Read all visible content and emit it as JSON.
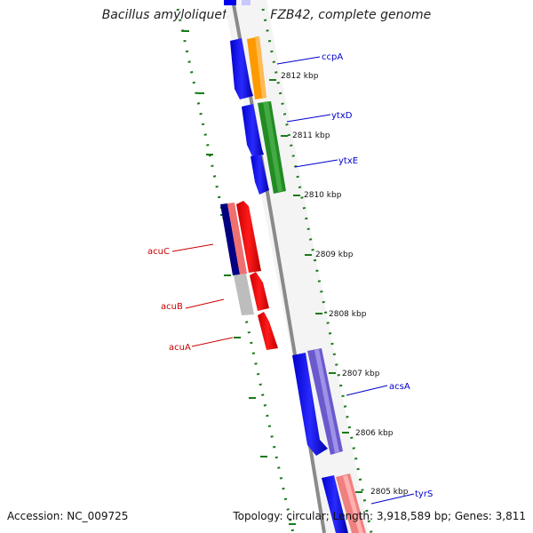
{
  "title": "Bacillus amyloliquefaciens FZB42, complete genome",
  "footer": {
    "accession": "Accession: NC_009725",
    "topology": "Topology: circular; Length: 3,918,589 bp; Genes: 3,811"
  },
  "scale_labels": [
    "2812 kbp",
    "2811 kbp",
    "2810 kbp",
    "2809 kbp",
    "2808 kbp",
    "2807 kbp",
    "2806 kbp",
    "2805 kbp"
  ],
  "genes": [
    {
      "name": "ccpA",
      "color": "#0000cc"
    },
    {
      "name": "ytxD",
      "color": "#0000cc"
    },
    {
      "name": "ytxE",
      "color": "#0000cc"
    },
    {
      "name": "acuC",
      "color": "#cc0000"
    },
    {
      "name": "acuB",
      "color": "#cc0000"
    },
    {
      "name": "acuA",
      "color": "#cc0000"
    },
    {
      "name": "acsA",
      "color": "#0000cc"
    },
    {
      "name": "tyrS",
      "color": "#0000cc"
    }
  ],
  "colors": {
    "backbone": "#777777",
    "tick": "#1a7a1a",
    "forward_cds": "#0000ff",
    "reverse_cds": "#ff0000",
    "orange": "#ff9900",
    "green": "#228b22",
    "purple": "#6655cc",
    "salmon": "#f07070",
    "navy": "#000077",
    "gray": "#bbbbbb"
  }
}
